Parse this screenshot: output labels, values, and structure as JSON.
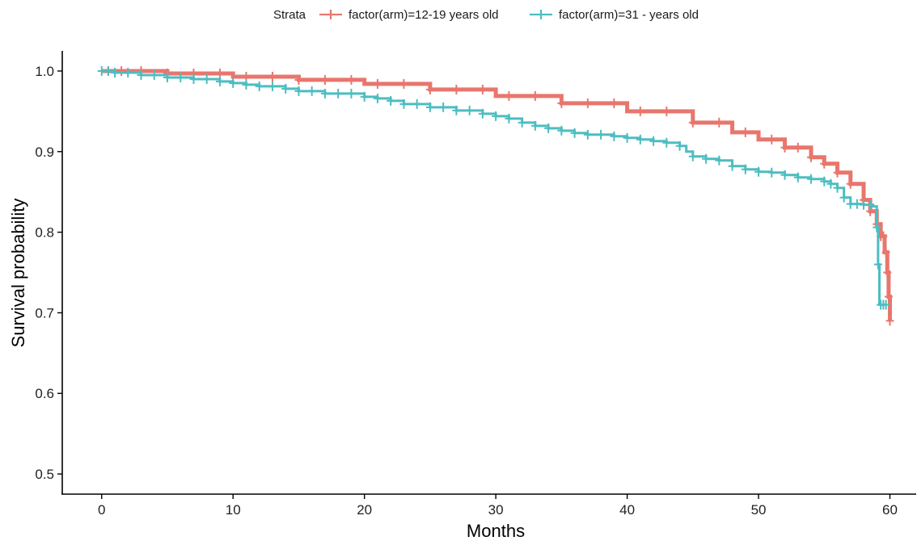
{
  "chart_data": {
    "type": "line",
    "subtype": "kaplan-meier survival curve",
    "xlabel": "Months",
    "ylabel": "Survival probability",
    "xlim": [
      -3,
      62
    ],
    "ylim": [
      0.475,
      1.025
    ],
    "xticks": [
      0,
      10,
      20,
      30,
      40,
      50,
      60
    ],
    "yticks": [
      0.5,
      0.6,
      0.7,
      0.8,
      0.9,
      1.0
    ],
    "ytick_labels": [
      "0.5",
      "0.6",
      "0.7",
      "0.8",
      "0.9",
      "1.0"
    ],
    "grid": false,
    "legend": {
      "title": "Strata",
      "position": "top",
      "entries": [
        "factor(arm)=12-19 years old",
        "factor(arm)=31 - years old"
      ]
    },
    "series": [
      {
        "name": "factor(arm)=12-19 years old",
        "color": "#E8766D",
        "points": [
          [
            0,
            1.0
          ],
          [
            5,
            0.997
          ],
          [
            10,
            0.993
          ],
          [
            15,
            0.989
          ],
          [
            20,
            0.984
          ],
          [
            25,
            0.977
          ],
          [
            30,
            0.969
          ],
          [
            35,
            0.96
          ],
          [
            40,
            0.95
          ],
          [
            45,
            0.936
          ],
          [
            48,
            0.924
          ],
          [
            50,
            0.915
          ],
          [
            52,
            0.905
          ],
          [
            54,
            0.893
          ],
          [
            55,
            0.885
          ],
          [
            56,
            0.874
          ],
          [
            57,
            0.86
          ],
          [
            58,
            0.84
          ],
          [
            58.5,
            0.826
          ],
          [
            59,
            0.81
          ],
          [
            59.3,
            0.795
          ],
          [
            59.6,
            0.775
          ],
          [
            59.8,
            0.75
          ],
          [
            59.9,
            0.72
          ],
          [
            60,
            0.69
          ]
        ],
        "censor_x": [
          0.5,
          1.5,
          3,
          5,
          7,
          9,
          11,
          13,
          15,
          17,
          19,
          21,
          23,
          25,
          27,
          29,
          31,
          33,
          35,
          37,
          39,
          41,
          43,
          45,
          47,
          49,
          51,
          52,
          53,
          54,
          55,
          56,
          57,
          58,
          58.5,
          59,
          59.3,
          59.5,
          59.7,
          59.8,
          59.9,
          60
        ]
      },
      {
        "name": "factor(arm)=31 - years old",
        "color": "#4DBDC1",
        "points": [
          [
            0,
            1.0
          ],
          [
            1,
            0.998
          ],
          [
            3,
            0.995
          ],
          [
            5,
            0.992
          ],
          [
            7,
            0.99
          ],
          [
            9,
            0.987
          ],
          [
            10,
            0.985
          ],
          [
            11,
            0.983
          ],
          [
            12,
            0.981
          ],
          [
            14,
            0.978
          ],
          [
            15,
            0.975
          ],
          [
            17,
            0.972
          ],
          [
            20,
            0.968
          ],
          [
            21,
            0.966
          ],
          [
            22,
            0.963
          ],
          [
            23,
            0.959
          ],
          [
            25,
            0.955
          ],
          [
            27,
            0.951
          ],
          [
            29,
            0.947
          ],
          [
            30,
            0.944
          ],
          [
            31,
            0.941
          ],
          [
            32,
            0.936
          ],
          [
            33,
            0.932
          ],
          [
            34,
            0.929
          ],
          [
            35,
            0.926
          ],
          [
            36,
            0.923
          ],
          [
            37,
            0.921
          ],
          [
            39,
            0.919
          ],
          [
            40,
            0.917
          ],
          [
            41,
            0.915
          ],
          [
            42,
            0.913
          ],
          [
            43,
            0.911
          ],
          [
            44,
            0.907
          ],
          [
            44.5,
            0.9
          ],
          [
            45,
            0.894
          ],
          [
            46,
            0.891
          ],
          [
            47,
            0.889
          ],
          [
            48,
            0.882
          ],
          [
            49,
            0.878
          ],
          [
            50,
            0.875
          ],
          [
            51,
            0.874
          ],
          [
            52,
            0.871
          ],
          [
            53,
            0.868
          ],
          [
            54,
            0.866
          ],
          [
            55,
            0.863
          ],
          [
            55.5,
            0.86
          ],
          [
            56,
            0.855
          ],
          [
            56.5,
            0.843
          ],
          [
            57,
            0.835
          ],
          [
            58,
            0.834
          ],
          [
            58.7,
            0.832
          ],
          [
            59,
            0.806
          ],
          [
            59.1,
            0.76
          ],
          [
            59.2,
            0.71
          ],
          [
            59.7,
            0.71
          ]
        ],
        "censor_x": [
          0,
          0.5,
          1,
          2,
          3,
          4,
          5,
          6,
          7,
          8,
          9,
          10,
          11,
          12,
          13,
          14,
          15,
          16,
          17,
          18,
          19,
          20,
          21,
          22,
          23,
          24,
          25,
          26,
          27,
          28,
          29,
          30,
          31,
          32,
          33,
          34,
          35,
          36,
          37,
          38,
          39,
          40,
          41,
          42,
          43,
          44,
          45,
          46,
          47,
          48,
          49,
          50,
          51,
          52,
          53,
          54,
          55,
          55.5,
          56,
          56.5,
          57,
          57.5,
          58,
          58.5,
          59,
          59.1,
          59.3,
          59.5,
          59.7
        ]
      }
    ]
  }
}
